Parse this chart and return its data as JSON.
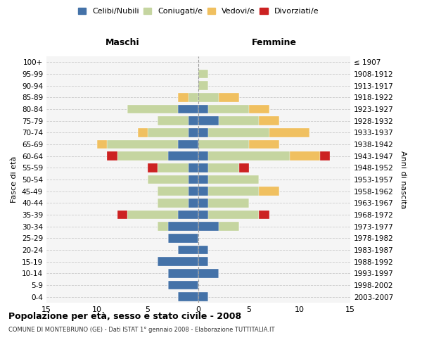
{
  "age_groups": [
    "0-4",
    "5-9",
    "10-14",
    "15-19",
    "20-24",
    "25-29",
    "30-34",
    "35-39",
    "40-44",
    "45-49",
    "50-54",
    "55-59",
    "60-64",
    "65-69",
    "70-74",
    "75-79",
    "80-84",
    "85-89",
    "90-94",
    "95-99",
    "100+"
  ],
  "birth_years": [
    "2003-2007",
    "1998-2002",
    "1993-1997",
    "1988-1992",
    "1983-1987",
    "1978-1982",
    "1973-1977",
    "1968-1972",
    "1963-1967",
    "1958-1962",
    "1953-1957",
    "1948-1952",
    "1943-1947",
    "1938-1942",
    "1933-1937",
    "1928-1932",
    "1923-1927",
    "1918-1922",
    "1913-1917",
    "1908-1912",
    "≤ 1907"
  ],
  "colors": {
    "celibe": "#4472a8",
    "coniugato": "#c5d5a0",
    "vedovo": "#f0c060",
    "divorziato": "#cc2222"
  },
  "males": {
    "celibe": [
      2,
      3,
      3,
      4,
      2,
      3,
      3,
      2,
      1,
      1,
      1,
      1,
      3,
      2,
      1,
      1,
      2,
      0,
      0,
      0,
      0
    ],
    "coniugato": [
      0,
      0,
      0,
      0,
      0,
      0,
      1,
      5,
      3,
      3,
      4,
      3,
      5,
      7,
      4,
      3,
      5,
      1,
      0,
      0,
      0
    ],
    "vedovo": [
      0,
      0,
      0,
      0,
      0,
      0,
      0,
      0,
      0,
      0,
      0,
      0,
      0,
      1,
      1,
      0,
      0,
      1,
      0,
      0,
      0
    ],
    "divorziato": [
      0,
      0,
      0,
      0,
      0,
      0,
      0,
      1,
      0,
      0,
      0,
      1,
      1,
      0,
      0,
      0,
      0,
      0,
      0,
      0,
      0
    ]
  },
  "females": {
    "celibe": [
      1,
      0,
      2,
      1,
      1,
      0,
      2,
      1,
      1,
      1,
      1,
      1,
      1,
      0,
      1,
      2,
      1,
      0,
      0,
      0,
      0
    ],
    "coniugato": [
      0,
      0,
      0,
      0,
      0,
      0,
      2,
      5,
      4,
      5,
      5,
      3,
      8,
      5,
      6,
      4,
      4,
      2,
      1,
      1,
      0
    ],
    "vedovo": [
      0,
      0,
      0,
      0,
      0,
      0,
      0,
      0,
      0,
      2,
      0,
      0,
      3,
      3,
      4,
      2,
      2,
      2,
      0,
      0,
      0
    ],
    "divorziato": [
      0,
      0,
      0,
      0,
      0,
      0,
      0,
      1,
      0,
      0,
      0,
      1,
      1,
      0,
      0,
      0,
      0,
      0,
      0,
      0,
      0
    ]
  },
  "title": "Popolazione per età, sesso e stato civile - 2008",
  "subtitle": "COMUNE DI MONTEBRUNO (GE) - Dati ISTAT 1° gennaio 2008 - Elaborazione TUTTITALIA.IT",
  "xlabel_left": "Maschi",
  "xlabel_right": "Femmine",
  "ylabel_left": "Fasce di età",
  "ylabel_right": "Anni di nascita",
  "xlim": 15,
  "legend_labels": [
    "Celibi/Nubili",
    "Coniugati/e",
    "Vedovi/e",
    "Divorziati/e"
  ],
  "bg_color": "#f5f5f5",
  "grid_color": "#cccccc"
}
